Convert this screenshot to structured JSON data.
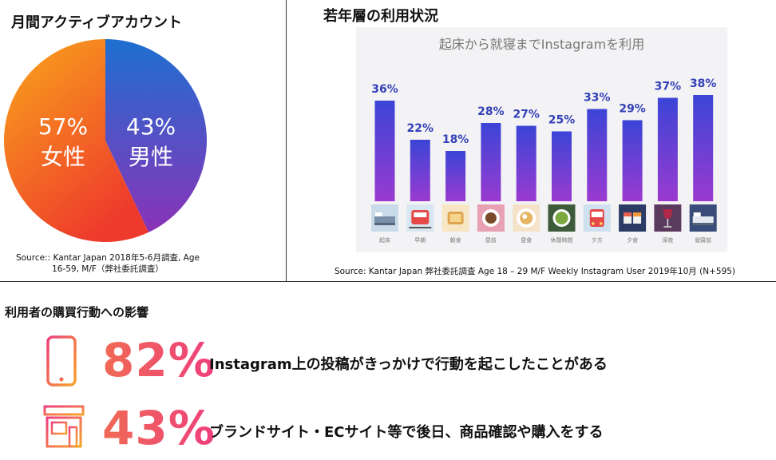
{
  "pie": {
    "title": "月間アクティブアカウント",
    "source_line1": "Source:: Kantar Japan 2018年5-6月調査, Age",
    "source_line2": "16-59, M/F（弊社委託調査）",
    "female_pct": "57%",
    "female_label": "女性",
    "male_pct": "43%",
    "male_label": "男性",
    "colors": {
      "female_start": "#f9a61b",
      "female_end": "#ee3a2c",
      "male_start": "#1e6fd1",
      "male_end": "#8a33b8"
    }
  },
  "young": {
    "title": "若年層の利用状況",
    "source": "Source: Kantar Japan 弊社委託調査 Age 18 – 29 M/F Weekly Instagram User 2019年10月 (N+595)"
  },
  "chart_data": [
    {
      "type": "pie",
      "categories": [
        "女性",
        "男性"
      ],
      "values": [
        57,
        43
      ],
      "title": "月間アクティブアカウント"
    },
    {
      "type": "bar",
      "title": "起床から就寝までInstagramを利用",
      "categories": [
        "起床",
        "早朝",
        "朝食",
        "昼前",
        "昼食",
        "休憩時間",
        "夕方",
        "夕食",
        "深夜",
        "就寝前"
      ],
      "values": [
        36,
        22,
        18,
        28,
        27,
        25,
        33,
        29,
        37,
        38
      ],
      "data_labels": [
        "36%",
        "22%",
        "18%",
        "28%",
        "27%",
        "25%",
        "33%",
        "29%",
        "37%",
        "38%"
      ],
      "icons": [
        "bed-icon",
        "train-icon",
        "toast-icon",
        "coffee-icon",
        "ramen-icon",
        "tea-icon",
        "bus-icon",
        "sushi-icon",
        "wine-icon",
        "bed-night-icon"
      ],
      "ylim": [
        0,
        40
      ],
      "colors": {
        "bar_top": "#3b45d6",
        "bar_bottom": "#9a3ad0",
        "label": "#3540b8"
      }
    }
  ],
  "purchase": {
    "title": "利用者の購買行動への影響",
    "stats": [
      {
        "value": "82%",
        "text": "Instagram上の投稿がきっかけで行動を起こしたことがある",
        "icon": "smartphone-icon"
      },
      {
        "value": "43%",
        "text": "ブランドサイト・ECサイト等で後日、商品確認や購入をする",
        "icon": "shop-icon"
      }
    ]
  }
}
